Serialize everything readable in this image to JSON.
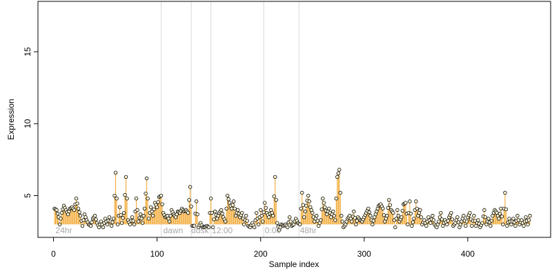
{
  "chart_data": {
    "type": "scatter",
    "xlabel": "Sample index",
    "ylabel": "Expression",
    "xlim": [
      -15,
      480
    ],
    "ylim": [
      2.1,
      18.5
    ],
    "x_ticks": [
      0,
      100,
      200,
      300,
      400
    ],
    "y_ticks": [
      5,
      10,
      15
    ],
    "baseline": 3.0,
    "grid": false,
    "legend": "none",
    "colors": {
      "above": "#f0a020",
      "below": "#7aa6d8",
      "separator": "#d9d9d9",
      "point_fill": "#fff7d6",
      "point_stroke": "#000000"
    },
    "phase_boundaries": [
      104,
      133,
      152,
      203,
      237
    ],
    "phase_labels": [
      {
        "text": "24hr",
        "x": 2
      },
      {
        "text": "dawn",
        "x": 106
      },
      {
        "text": "dusk",
        "x": 133
      },
      {
        "text": "12:00",
        "x": 153
      },
      {
        "text": "0:00",
        "x": 204
      },
      {
        "text": "48hr",
        "x": 238
      }
    ],
    "anchors": [
      [
        1,
        4.1
      ],
      [
        3,
        4.0
      ],
      [
        5,
        3.5
      ],
      [
        6,
        3.0
      ],
      [
        8,
        3.8
      ],
      [
        10,
        4.3
      ],
      [
        12,
        4.0
      ],
      [
        14,
        3.7
      ],
      [
        16,
        4.1
      ],
      [
        18,
        4.2
      ],
      [
        20,
        4.0
      ],
      [
        22,
        4.8
      ],
      [
        24,
        4.1
      ],
      [
        26,
        3.6
      ],
      [
        28,
        2.9
      ],
      [
        30,
        3.7
      ],
      [
        32,
        3.3
      ],
      [
        34,
        3.0
      ],
      [
        36,
        2.9
      ],
      [
        38,
        3.4
      ],
      [
        40,
        3.6
      ],
      [
        42,
        3.1
      ],
      [
        44,
        2.8
      ],
      [
        46,
        3.2
      ],
      [
        48,
        2.8
      ],
      [
        50,
        3.4
      ],
      [
        52,
        3.0
      ],
      [
        54,
        3.5
      ],
      [
        56,
        2.9
      ],
      [
        58,
        3.4
      ],
      [
        60,
        6.6
      ],
      [
        62,
        3.0
      ],
      [
        64,
        4.2
      ],
      [
        66,
        3.1
      ],
      [
        68,
        3.8
      ],
      [
        70,
        6.3
      ],
      [
        72,
        3.3
      ],
      [
        74,
        3.0
      ],
      [
        76,
        3.5
      ],
      [
        78,
        3.0
      ],
      [
        80,
        4.8
      ],
      [
        82,
        3.2
      ],
      [
        84,
        3.7
      ],
      [
        86,
        3.1
      ],
      [
        88,
        4.1
      ],
      [
        90,
        6.2
      ],
      [
        92,
        3.4
      ],
      [
        94,
        4.2
      ],
      [
        96,
        3.6
      ],
      [
        98,
        4.5
      ],
      [
        100,
        4.2
      ],
      [
        102,
        4.9
      ],
      [
        104,
        5.0
      ],
      [
        106,
        3.8
      ],
      [
        108,
        3.5
      ],
      [
        110,
        3.6
      ],
      [
        112,
        3.2
      ],
      [
        114,
        4.0
      ],
      [
        116,
        3.7
      ],
      [
        118,
        3.5
      ],
      [
        120,
        3.9
      ],
      [
        122,
        3.8
      ],
      [
        124,
        4.1
      ],
      [
        126,
        3.9
      ],
      [
        128,
        4.0
      ],
      [
        130,
        3.8
      ],
      [
        132,
        5.6
      ],
      [
        134,
        2.9
      ],
      [
        136,
        2.9
      ],
      [
        138,
        4.6
      ],
      [
        140,
        2.8
      ],
      [
        142,
        3.1
      ],
      [
        144,
        2.8
      ],
      [
        146,
        2.8
      ],
      [
        148,
        2.9
      ],
      [
        150,
        2.8
      ],
      [
        152,
        4.8
      ],
      [
        154,
        2.8
      ],
      [
        156,
        3.9
      ],
      [
        158,
        3.4
      ],
      [
        160,
        3.8
      ],
      [
        162,
        4.0
      ],
      [
        164,
        3.5
      ],
      [
        166,
        3.2
      ],
      [
        168,
        5.0
      ],
      [
        170,
        4.5
      ],
      [
        172,
        4.1
      ],
      [
        174,
        4.6
      ],
      [
        176,
        3.6
      ],
      [
        178,
        4.0
      ],
      [
        180,
        3.5
      ],
      [
        182,
        3.8
      ],
      [
        184,
        3.0
      ],
      [
        186,
        3.6
      ],
      [
        188,
        2.9
      ],
      [
        190,
        2.8
      ],
      [
        192,
        3.1
      ],
      [
        194,
        2.8
      ],
      [
        196,
        3.8
      ],
      [
        198,
        3.0
      ],
      [
        200,
        4.0
      ],
      [
        202,
        3.2
      ],
      [
        204,
        4.5
      ],
      [
        206,
        3.8
      ],
      [
        208,
        3.5
      ],
      [
        210,
        4.0
      ],
      [
        212,
        3.6
      ],
      [
        214,
        6.3
      ],
      [
        216,
        3.1
      ],
      [
        218,
        2.6
      ],
      [
        220,
        3.0
      ],
      [
        222,
        2.9
      ],
      [
        224,
        3.0
      ],
      [
        226,
        2.8
      ],
      [
        228,
        3.5
      ],
      [
        230,
        2.9
      ],
      [
        232,
        3.0
      ],
      [
        234,
        3.4
      ],
      [
        236,
        3.1
      ],
      [
        238,
        3.0
      ],
      [
        240,
        5.2
      ],
      [
        242,
        3.5
      ],
      [
        244,
        4.3
      ],
      [
        246,
        5.0
      ],
      [
        248,
        4.2
      ],
      [
        250,
        3.8
      ],
      [
        252,
        3.2
      ],
      [
        254,
        3.6
      ],
      [
        256,
        2.9
      ],
      [
        258,
        3.3
      ],
      [
        260,
        4.8
      ],
      [
        262,
        4.2
      ],
      [
        264,
        3.7
      ],
      [
        266,
        4.1
      ],
      [
        268,
        3.5
      ],
      [
        270,
        3.9
      ],
      [
        272,
        3.3
      ],
      [
        274,
        6.3
      ],
      [
        276,
        6.8
      ],
      [
        278,
        3.6
      ],
      [
        280,
        2.8
      ],
      [
        282,
        3.0
      ],
      [
        284,
        3.4
      ],
      [
        286,
        3.6
      ],
      [
        288,
        3.2
      ],
      [
        290,
        3.9
      ],
      [
        292,
        3.0
      ],
      [
        294,
        3.5
      ],
      [
        296,
        3.3
      ],
      [
        298,
        3.2
      ],
      [
        300,
        3.5
      ],
      [
        302,
        3.8
      ],
      [
        304,
        4.1
      ],
      [
        306,
        3.6
      ],
      [
        308,
        3.0
      ],
      [
        310,
        3.5
      ],
      [
        312,
        3.9
      ],
      [
        314,
        4.3
      ],
      [
        316,
        4.4
      ],
      [
        318,
        4.1
      ],
      [
        320,
        3.2
      ],
      [
        322,
        3.6
      ],
      [
        324,
        4.7
      ],
      [
        326,
        4.0
      ],
      [
        328,
        3.8
      ],
      [
        330,
        2.8
      ],
      [
        332,
        4.0
      ],
      [
        334,
        3.2
      ],
      [
        336,
        3.5
      ],
      [
        338,
        4.4
      ],
      [
        340,
        4.5
      ],
      [
        342,
        3.0
      ],
      [
        344,
        4.6
      ],
      [
        346,
        2.9
      ],
      [
        348,
        3.4
      ],
      [
        350,
        4.6
      ],
      [
        352,
        3.6
      ],
      [
        354,
        4.0
      ],
      [
        356,
        3.0
      ],
      [
        358,
        3.3
      ],
      [
        360,
        2.9
      ],
      [
        362,
        3.5
      ],
      [
        364,
        3.1
      ],
      [
        366,
        3.6
      ],
      [
        368,
        3.0
      ],
      [
        370,
        2.8
      ],
      [
        372,
        3.2
      ],
      [
        374,
        3.8
      ],
      [
        376,
        2.9
      ],
      [
        378,
        3.3
      ],
      [
        380,
        3.0
      ],
      [
        382,
        3.5
      ],
      [
        384,
        3.8
      ],
      [
        386,
        2.9
      ],
      [
        388,
        3.1
      ],
      [
        390,
        3.5
      ],
      [
        392,
        2.8
      ],
      [
        394,
        3.2
      ],
      [
        396,
        3.6
      ],
      [
        398,
        2.9
      ],
      [
        400,
        3.5
      ],
      [
        402,
        3.8
      ],
      [
        404,
        2.9
      ],
      [
        406,
        3.6
      ],
      [
        408,
        2.9
      ],
      [
        410,
        3.3
      ],
      [
        412,
        2.8
      ],
      [
        414,
        3.1
      ],
      [
        416,
        4.0
      ],
      [
        418,
        3.0
      ],
      [
        420,
        3.4
      ],
      [
        422,
        2.9
      ],
      [
        424,
        3.6
      ],
      [
        426,
        4.0
      ],
      [
        428,
        3.8
      ],
      [
        430,
        3.4
      ],
      [
        432,
        4.1
      ],
      [
        434,
        3.0
      ],
      [
        436,
        5.2
      ],
      [
        438,
        2.9
      ],
      [
        440,
        3.4
      ],
      [
        442,
        3.0
      ],
      [
        444,
        3.4
      ],
      [
        446,
        2.9
      ],
      [
        448,
        3.6
      ],
      [
        450,
        3.0
      ],
      [
        452,
        3.3
      ],
      [
        454,
        2.9
      ],
      [
        456,
        3.5
      ],
      [
        458,
        3.0
      ],
      [
        460,
        3.6
      ]
    ]
  }
}
